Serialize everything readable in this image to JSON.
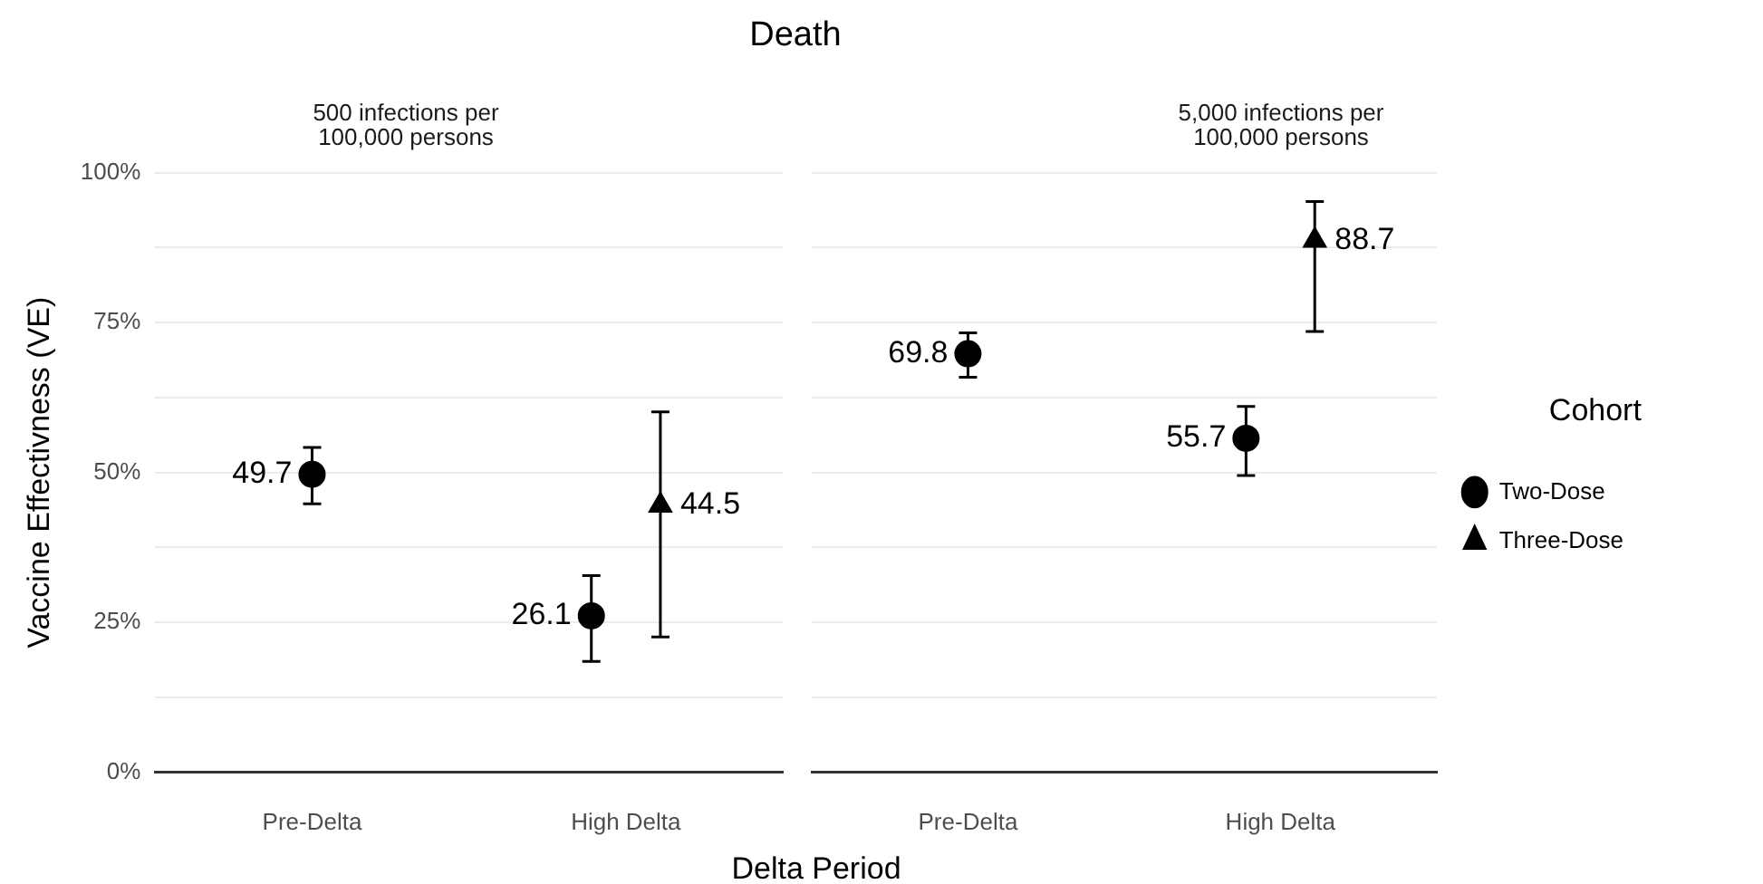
{
  "chart_data": [
    {
      "type": "scatter",
      "title": "Death",
      "subtitle": "500 infections per\n100,000 persons",
      "xlabel": "Delta Period",
      "ylabel": "Vaccine Effectivness (VE)",
      "categories": [
        "Pre-Delta",
        "High Delta"
      ],
      "series": [
        {
          "color": "#000000",
          "marker": "circle",
          "values": [
            49.7,
            26.1
          ],
          "errors": [
            [
              44.8,
              54.2
            ],
            [
              18.5,
              32.8
            ]
          ]
        },
        {
          "color": "#000000",
          "marker": "triangle",
          "values": [
            null,
            44.5
          ],
          "errors": [
            null,
            [
              22.6,
              60.1
            ]
          ]
        }
      ],
      "ylim": [
        0,
        100
      ],
      "yticks": [
        {
          "value": 0,
          "label": "0%"
        },
        {
          "value": 12.5,
          "label": null
        },
        {
          "value": 25,
          "label": "25%"
        },
        {
          "value": 37.5,
          "label": null
        },
        {
          "value": 50,
          "label": "50%"
        },
        {
          "value": 62.5,
          "label": null
        },
        {
          "value": 75,
          "label": "75%"
        },
        {
          "value": 87.5,
          "label": null
        },
        {
          "value": 100,
          "label": "100%"
        }
      ],
      "grid": "y",
      "data_labels": true,
      "legend": false
    },
    {
      "type": "scatter",
      "subtitle": "5,000 infections per\n100,000 persons",
      "legend_title": "Cohort",
      "categories": [
        "Pre-Delta",
        "High Delta"
      ],
      "series": [
        {
          "name": "Two-Dose",
          "color": "#000000",
          "marker": "circle",
          "values": [
            69.8,
            55.7
          ],
          "errors": [
            [
              65.9,
              73.3
            ],
            [
              49.5,
              61.0
            ]
          ]
        },
        {
          "name": "Three-Dose",
          "color": "#000000",
          "marker": "triangle",
          "values": [
            null,
            88.7
          ],
          "errors": [
            null,
            [
              73.5,
              95.2
            ]
          ]
        }
      ],
      "ylim": [
        0,
        100
      ],
      "yticks": [
        {
          "value": 0,
          "label": null
        },
        {
          "value": 12.5,
          "label": null
        },
        {
          "value": 25,
          "label": null
        },
        {
          "value": 37.5,
          "label": null
        },
        {
          "value": 50,
          "label": null
        },
        {
          "value": 62.5,
          "label": null
        },
        {
          "value": 75,
          "label": null
        },
        {
          "value": 87.5,
          "label": null
        },
        {
          "value": 100,
          "label": null
        }
      ],
      "grid": "y",
      "data_labels": true,
      "legend": "right",
      "tick_labels": "x"
    }
  ]
}
